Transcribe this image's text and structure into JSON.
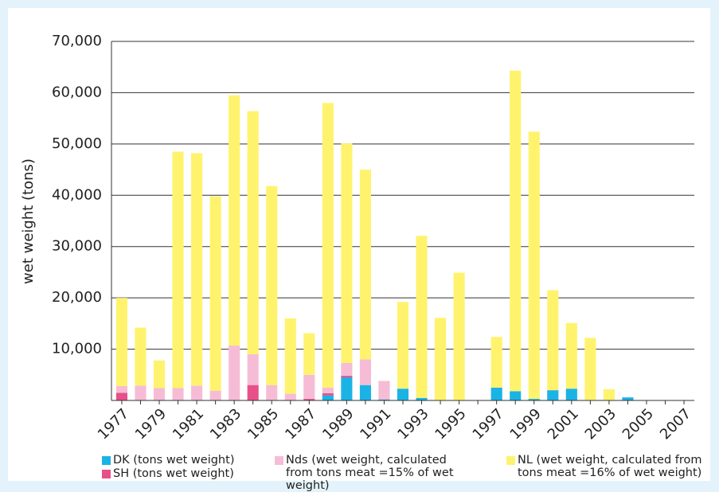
{
  "chart_data": {
    "type": "stacked_bar",
    "y_label": "wet weight (tons)",
    "categories": [
      "1977",
      null,
      "1979",
      null,
      "1981",
      null,
      "1983",
      null,
      "1985",
      null,
      "1987",
      null,
      "1989",
      null,
      "1991",
      null,
      "1993",
      null,
      "1995",
      null,
      "1997",
      null,
      "1999",
      null,
      "2001",
      null,
      "2003",
      null,
      "2005",
      null,
      "2007"
    ],
    "series": [
      {
        "name": "DK (tons wet weight)",
        "color": "#1bb3e6",
        "values": [
          0,
          0,
          0,
          0,
          0,
          0,
          0,
          0,
          0,
          0,
          0,
          1000,
          4500,
          3000,
          200,
          2300,
          500,
          0,
          0,
          0,
          2500,
          1800,
          300,
          2000,
          2300,
          0,
          0,
          600,
          0,
          0,
          0
        ]
      },
      {
        "name": "SH (tons wet weight)",
        "color": "#e8508a",
        "values": [
          1500,
          0,
          0,
          0,
          0,
          0,
          0,
          3000,
          0,
          0,
          300,
          400,
          300,
          0,
          0,
          0,
          0,
          0,
          0,
          0,
          0,
          0,
          0,
          0,
          0,
          0,
          0,
          0,
          0,
          0,
          0
        ]
      },
      {
        "name": "Nds (wet weight, calculated from tons meat =15% of wet weight)",
        "color": "#f6bcd6",
        "values": [
          1300,
          2900,
          2400,
          2400,
          2900,
          1900,
          10700,
          6000,
          3000,
          1300,
          4700,
          1100,
          2500,
          5000,
          3600,
          0,
          0,
          0,
          0,
          0,
          0,
          0,
          0,
          0,
          0,
          0,
          0,
          0,
          0,
          0,
          0
        ]
      },
      {
        "name": "NL (wet weight, calculated from tons meat =16% of wet weight)",
        "color": "#fff36e",
        "values": [
          17200,
          11300,
          5400,
          46100,
          45300,
          37900,
          48800,
          47400,
          38800,
          14700,
          8100,
          55500,
          42800,
          37000,
          0,
          16900,
          31600,
          16100,
          24900,
          0,
          9900,
          62500,
          52100,
          19500,
          12800,
          12200,
          2200,
          0,
          0,
          0,
          0
        ]
      }
    ],
    "ylim": [
      0,
      70000
    ],
    "yticks": [
      {
        "value": 10000,
        "label": "10,000"
      },
      {
        "value": 20000,
        "label": "20,000"
      },
      {
        "value": 30000,
        "label": "30,000"
      },
      {
        "value": 40000,
        "label": "40,000"
      },
      {
        "value": 50000,
        "label": "50,000"
      },
      {
        "value": 60000,
        "label": "60,000"
      },
      {
        "value": 70000,
        "label": "70,000"
      }
    ],
    "grid": true
  }
}
